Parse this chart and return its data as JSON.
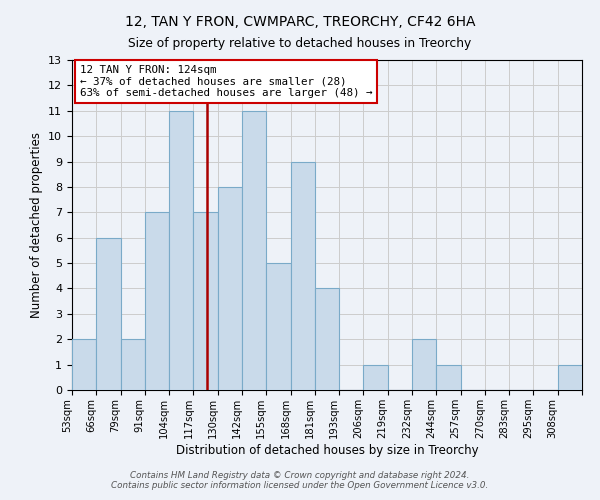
{
  "title_line1": "12, TAN Y FRON, CWMPARC, TREORCHY, CF42 6HA",
  "title_line2": "Size of property relative to detached houses in Treorchy",
  "xlabel": "Distribution of detached houses by size in Treorchy",
  "ylabel": "Number of detached properties",
  "bin_labels": [
    "53sqm",
    "66sqm",
    "79sqm",
    "91sqm",
    "104sqm",
    "117sqm",
    "130sqm",
    "142sqm",
    "155sqm",
    "168sqm",
    "181sqm",
    "193sqm",
    "206sqm",
    "219sqm",
    "232sqm",
    "244sqm",
    "257sqm",
    "270sqm",
    "283sqm",
    "295sqm",
    "308sqm"
  ],
  "bar_heights": [
    2,
    6,
    2,
    7,
    11,
    7,
    8,
    11,
    5,
    9,
    4,
    0,
    1,
    0,
    2,
    1,
    0,
    0,
    0,
    0,
    1
  ],
  "bar_color": "#c9daea",
  "bar_edge_color": "#7aaac8",
  "ylim": [
    0,
    13
  ],
  "yticks": [
    0,
    1,
    2,
    3,
    4,
    5,
    6,
    7,
    8,
    9,
    10,
    11,
    12,
    13
  ],
  "property_size": 124,
  "red_line_color": "#aa0000",
  "annotation_title": "12 TAN Y FRON: 124sqm",
  "annotation_line1": "← 37% of detached houses are smaller (28)",
  "annotation_line2": "63% of semi-detached houses are larger (48) →",
  "annotation_box_color": "#ffffff",
  "annotation_box_edge": "#cc0000",
  "grid_color": "#cccccc",
  "background_color": "#eef2f8",
  "footer_line1": "Contains HM Land Registry data © Crown copyright and database right 2024.",
  "footer_line2": "Contains public sector information licensed under the Open Government Licence v3.0."
}
